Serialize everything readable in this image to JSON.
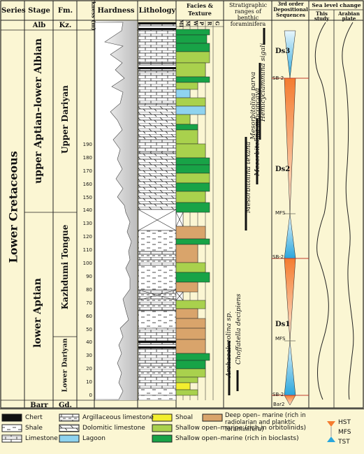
{
  "headers": {
    "series": "Series",
    "stage": "Stage",
    "fm": "Fm.",
    "thickness": "Thickness (m)",
    "hardness": "Hardness",
    "lithology": "Lithology",
    "facies": "Facies & Texture",
    "facies_cols": [
      "MI",
      "M",
      "W",
      "P",
      "R",
      "G"
    ],
    "ranges": "Stratigraphic ranges of benthic foraminifera",
    "sequences": "3rd order Depositional Sequences",
    "sea_level": "Sea level change",
    "this_study": "This study",
    "arabian_plate": "Arabian plate"
  },
  "series_label": "Lower Cretaceous",
  "stages": {
    "alb": "Alb",
    "upper": "upper Aptian–lower Albian",
    "lower": "lower Aptian",
    "barr": "Barr"
  },
  "formations": {
    "kz": "Kz.",
    "upper_dariyan": "Upper Dariyan",
    "kazhdumi": "Kazhdumi Tongue",
    "lower_dariyan": "Lower Dariyan",
    "gd": "Gd."
  },
  "thickness_ticks": [
    0,
    10,
    20,
    30,
    40,
    50,
    60,
    70,
    80,
    90,
    100,
    110,
    120,
    130,
    140,
    150,
    160,
    170,
    180,
    190
  ],
  "foraminifera": [
    "Hemicyclammina sigali",
    "Mesorbitolina parva",
    "Mesorbitolina subconcava",
    "Mesorbitolina texana",
    "Archaealveolina sp.",
    "Choffatella decipiens"
  ],
  "sequences": {
    "ds3": "Ds3",
    "ds2": "Ds2",
    "ds1": "Ds1",
    "sb2_top": "SB-2",
    "mfs_upper": "MFS",
    "sb2_mid": "SB-2",
    "mfs_lower": "MFS",
    "sb2_bottom": "SB-2",
    "bar2": "Bar2"
  },
  "legend": {
    "chert": "Chert",
    "shale": "Shale",
    "limestone": "Limestone",
    "argillaceous": "Argillaceous limestone",
    "dolomitic": "Dolomitic limestone",
    "lagoon": "Lagoon",
    "shoal": "Shoal",
    "deep": "Deep open– marine (rich in radiolarian and planktic foraminifera)",
    "shallow_orb": "Shallow open–marine (rich in orbitolinids)",
    "shallow_bio": "Shallow open–marine (rich in bioclasts)",
    "hst": "HST",
    "mfs": "MFS",
    "tst": "TST"
  },
  "colors": {
    "background": "#fbf6d3",
    "lagoon": "#8fd3ef",
    "shoal": "#f2ee2e",
    "deep": "#d9a46b",
    "shallow_orb": "#a9d14d",
    "shallow_bio": "#18a347",
    "hst": "#f47c30",
    "tst": "#2aa6dc"
  }
}
